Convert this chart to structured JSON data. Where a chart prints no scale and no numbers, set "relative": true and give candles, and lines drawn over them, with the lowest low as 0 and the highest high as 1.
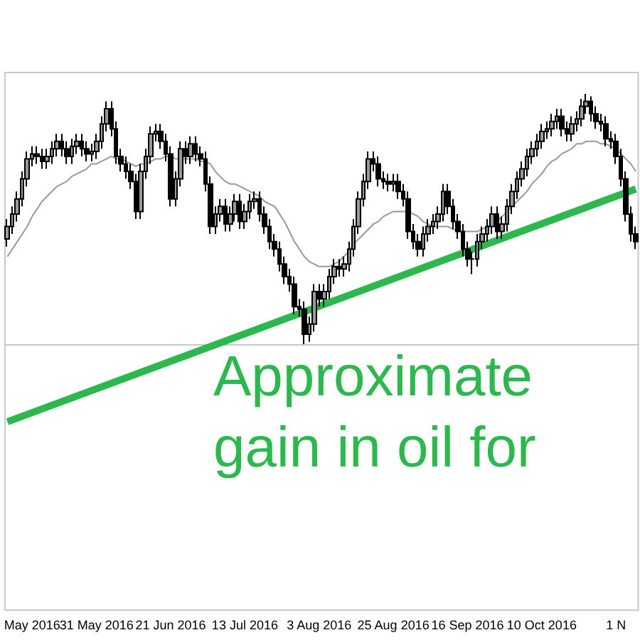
{
  "chart_data": {
    "type": "candlestick",
    "relative": true,
    "categories": [
      null,
      null,
      null,
      null,
      null,
      "May 2016",
      null,
      null,
      null,
      null,
      null,
      null,
      null,
      null,
      null,
      null,
      null,
      null,
      "31 May 2016",
      null,
      null,
      null,
      null,
      null,
      null,
      null,
      null,
      null,
      null,
      null,
      null,
      null,
      null,
      "21 Jun 2016",
      null,
      null,
      null,
      null,
      null,
      null,
      null,
      null,
      null,
      null,
      null,
      null,
      null,
      null,
      "13 Jul 2016",
      null,
      null,
      null,
      null,
      null,
      null,
      null,
      null,
      null,
      null,
      null,
      null,
      null,
      null,
      "3 Aug 2016",
      null,
      null,
      null,
      null,
      null,
      null,
      null,
      null,
      null,
      null,
      null,
      null,
      null,
      null,
      "25 Aug 2016",
      null,
      null,
      null,
      null,
      null,
      null,
      null,
      null,
      null,
      null,
      null,
      null,
      null,
      null,
      "16 Sep 2016",
      null,
      null,
      null,
      null,
      null,
      null,
      null,
      null,
      null,
      null,
      null,
      null,
      null,
      null,
      "10 Oct 2016",
      null,
      null,
      null,
      null,
      null,
      null,
      null,
      null,
      null,
      null,
      null,
      null,
      null,
      null,
      "1 N",
      null,
      null,
      null,
      null
    ],
    "series": [
      {
        "color": "#000000",
        "ohlc": [
          [
            0.42,
            0.5,
            0.39,
            0.47
          ],
          [
            0.47,
            0.55,
            0.44,
            0.52
          ],
          [
            0.52,
            0.61,
            0.49,
            0.58
          ],
          [
            0.58,
            0.69,
            0.55,
            0.66
          ],
          [
            0.66,
            0.77,
            0.63,
            0.74
          ],
          [
            0.74,
            0.79,
            0.71,
            0.76
          ],
          [
            0.76,
            0.79,
            0.72,
            0.75
          ],
          [
            0.75,
            0.78,
            0.7,
            0.73
          ],
          [
            0.73,
            0.78,
            0.7,
            0.75
          ],
          [
            0.75,
            0.81,
            0.72,
            0.78
          ],
          [
            0.78,
            0.84,
            0.75,
            0.81
          ],
          [
            0.81,
            0.84,
            0.75,
            0.78
          ],
          [
            0.78,
            0.81,
            0.72,
            0.75
          ],
          [
            0.75,
            0.82,
            0.72,
            0.79
          ],
          [
            0.79,
            0.84,
            0.76,
            0.81
          ],
          [
            0.81,
            0.84,
            0.75,
            0.78
          ],
          [
            0.78,
            0.81,
            0.73,
            0.76
          ],
          [
            0.76,
            0.8,
            0.73,
            0.77
          ],
          [
            0.77,
            0.84,
            0.74,
            0.81
          ],
          [
            0.81,
            0.91,
            0.78,
            0.88
          ],
          [
            0.88,
            0.97,
            0.85,
            0.94
          ],
          [
            0.94,
            0.97,
            0.83,
            0.86
          ],
          [
            0.86,
            0.89,
            0.72,
            0.75
          ],
          [
            0.75,
            0.78,
            0.69,
            0.72
          ],
          [
            0.72,
            0.75,
            0.66,
            0.69
          ],
          [
            0.69,
            0.72,
            0.62,
            0.65
          ],
          [
            0.65,
            0.68,
            0.5,
            0.53
          ],
          [
            0.53,
            0.72,
            0.5,
            0.69
          ],
          [
            0.69,
            0.78,
            0.66,
            0.75
          ],
          [
            0.75,
            0.87,
            0.72,
            0.84
          ],
          [
            0.84,
            0.88,
            0.81,
            0.85
          ],
          [
            0.85,
            0.88,
            0.78,
            0.81
          ],
          [
            0.81,
            0.84,
            0.73,
            0.76
          ],
          [
            0.76,
            0.79,
            0.55,
            0.58
          ],
          [
            0.58,
            0.69,
            0.55,
            0.66
          ],
          [
            0.66,
            0.81,
            0.63,
            0.78
          ],
          [
            0.78,
            0.81,
            0.72,
            0.75
          ],
          [
            0.75,
            0.83,
            0.72,
            0.8
          ],
          [
            0.8,
            0.83,
            0.73,
            0.76
          ],
          [
            0.76,
            0.79,
            0.71,
            0.74
          ],
          [
            0.74,
            0.77,
            0.61,
            0.64
          ],
          [
            0.64,
            0.67,
            0.44,
            0.47
          ],
          [
            0.47,
            0.55,
            0.44,
            0.52
          ],
          [
            0.52,
            0.58,
            0.49,
            0.55
          ],
          [
            0.55,
            0.58,
            0.45,
            0.48
          ],
          [
            0.48,
            0.55,
            0.45,
            0.52
          ],
          [
            0.52,
            0.6,
            0.49,
            0.57
          ],
          [
            0.57,
            0.6,
            0.46,
            0.49
          ],
          [
            0.49,
            0.56,
            0.46,
            0.53
          ],
          [
            0.53,
            0.6,
            0.5,
            0.57
          ],
          [
            0.57,
            0.61,
            0.54,
            0.58
          ],
          [
            0.58,
            0.61,
            0.49,
            0.52
          ],
          [
            0.52,
            0.55,
            0.44,
            0.47
          ],
          [
            0.47,
            0.5,
            0.38,
            0.41
          ],
          [
            0.41,
            0.44,
            0.35,
            0.38
          ],
          [
            0.38,
            0.41,
            0.29,
            0.32
          ],
          [
            0.32,
            0.35,
            0.24,
            0.27
          ],
          [
            0.27,
            0.3,
            0.21,
            0.24
          ],
          [
            0.24,
            0.27,
            0.12,
            0.15
          ],
          [
            0.15,
            0.18,
            0.11,
            0.14
          ],
          [
            0.14,
            0.17,
            0,
            0.04
          ],
          [
            0.04,
            0.11,
            0.01,
            0.08
          ],
          [
            0.08,
            0.24,
            0.05,
            0.21
          ],
          [
            0.21,
            0.24,
            0.15,
            0.18
          ],
          [
            0.18,
            0.24,
            0.15,
            0.21
          ],
          [
            0.21,
            0.3,
            0.18,
            0.27
          ],
          [
            0.27,
            0.34,
            0.24,
            0.31
          ],
          [
            0.31,
            0.34,
            0.27,
            0.3
          ],
          [
            0.3,
            0.35,
            0.27,
            0.32
          ],
          [
            0.32,
            0.41,
            0.29,
            0.38
          ],
          [
            0.38,
            0.5,
            0.35,
            0.47
          ],
          [
            0.47,
            0.61,
            0.44,
            0.58
          ],
          [
            0.58,
            0.68,
            0.55,
            0.65
          ],
          [
            0.65,
            0.77,
            0.62,
            0.74
          ],
          [
            0.74,
            0.77,
            0.69,
            0.72
          ],
          [
            0.72,
            0.75,
            0.63,
            0.66
          ],
          [
            0.66,
            0.69,
            0.62,
            0.65
          ],
          [
            0.65,
            0.68,
            0.61,
            0.64
          ],
          [
            0.64,
            0.68,
            0.61,
            0.65
          ],
          [
            0.65,
            0.68,
            0.58,
            0.61
          ],
          [
            0.61,
            0.64,
            0.55,
            0.58
          ],
          [
            0.58,
            0.61,
            0.42,
            0.45
          ],
          [
            0.45,
            0.48,
            0.38,
            0.41
          ],
          [
            0.41,
            0.44,
            0.35,
            0.38
          ],
          [
            0.38,
            0.47,
            0.35,
            0.44
          ],
          [
            0.44,
            0.5,
            0.41,
            0.47
          ],
          [
            0.47,
            0.52,
            0.44,
            0.49
          ],
          [
            0.49,
            0.55,
            0.46,
            0.52
          ],
          [
            0.52,
            0.64,
            0.49,
            0.61
          ],
          [
            0.61,
            0.64,
            0.52,
            0.55
          ],
          [
            0.55,
            0.58,
            0.46,
            0.49
          ],
          [
            0.49,
            0.52,
            0.42,
            0.45
          ],
          [
            0.45,
            0.48,
            0.35,
            0.38
          ],
          [
            0.38,
            0.41,
            0.31,
            0.34
          ],
          [
            0.34,
            0.37,
            0.28,
            0.34
          ],
          [
            0.34,
            0.44,
            0.31,
            0.41
          ],
          [
            0.41,
            0.47,
            0.38,
            0.44
          ],
          [
            0.44,
            0.5,
            0.41,
            0.47
          ],
          [
            0.47,
            0.55,
            0.44,
            0.52
          ],
          [
            0.52,
            0.55,
            0.42,
            0.45
          ],
          [
            0.45,
            0.51,
            0.42,
            0.48
          ],
          [
            0.48,
            0.58,
            0.45,
            0.55
          ],
          [
            0.55,
            0.64,
            0.52,
            0.61
          ],
          [
            0.61,
            0.69,
            0.58,
            0.66
          ],
          [
            0.66,
            0.73,
            0.63,
            0.7
          ],
          [
            0.7,
            0.78,
            0.67,
            0.75
          ],
          [
            0.75,
            0.81,
            0.72,
            0.78
          ],
          [
            0.78,
            0.84,
            0.75,
            0.81
          ],
          [
            0.81,
            0.88,
            0.78,
            0.85
          ],
          [
            0.85,
            0.89,
            0.82,
            0.86
          ],
          [
            0.86,
            0.92,
            0.83,
            0.89
          ],
          [
            0.89,
            0.94,
            0.86,
            0.91
          ],
          [
            0.91,
            0.94,
            0.83,
            0.86
          ],
          [
            0.86,
            0.89,
            0.81,
            0.84
          ],
          [
            0.84,
            0.91,
            0.81,
            0.88
          ],
          [
            0.88,
            0.93,
            0.85,
            0.9
          ],
          [
            0.9,
            0.98,
            0.87,
            0.95
          ],
          [
            0.95,
            1,
            0.92,
            0.97
          ],
          [
            0.97,
            0.99,
            0.89,
            0.92
          ],
          [
            0.92,
            0.95,
            0.86,
            0.89
          ],
          [
            0.89,
            0.92,
            0.85,
            0.88
          ],
          [
            0.88,
            0.91,
            0.79,
            0.82
          ],
          [
            0.82,
            0.85,
            0.78,
            0.81
          ],
          [
            0.81,
            0.84,
            0.72,
            0.75
          ],
          [
            0.75,
            0.78,
            0.63,
            0.66
          ],
          [
            0.66,
            0.69,
            0.49,
            0.52
          ],
          [
            0.52,
            0.55,
            0.41,
            0.44
          ],
          [
            0.44,
            0.47,
            0.38,
            0.41
          ]
        ]
      },
      {
        "type": "line",
        "color": "#999999",
        "values": [
          0.35,
          0.38,
          0.41,
          0.44,
          0.47,
          0.51,
          0.54,
          0.57,
          0.59,
          0.61,
          0.63,
          0.64,
          0.65,
          0.67,
          0.68,
          0.69,
          0.7,
          0.72,
          0.72,
          0.73,
          0.74,
          0.75,
          0.74,
          0.74,
          0.73,
          0.72,
          0.71,
          0.72,
          0.72,
          0.73,
          0.74,
          0.74,
          0.75,
          0.75,
          0.74,
          0.74,
          0.74,
          0.74,
          0.74,
          0.73,
          0.73,
          0.72,
          0.69,
          0.67,
          0.65,
          0.64,
          0.64,
          0.63,
          0.62,
          0.61,
          0.6,
          0.59,
          0.57,
          0.56,
          0.55,
          0.52,
          0.49,
          0.45,
          0.41,
          0.38,
          0.35,
          0.33,
          0.32,
          0.31,
          0.31,
          0.31,
          0.32,
          0.33,
          0.35,
          0.37,
          0.4,
          0.42,
          0.44,
          0.46,
          0.48,
          0.49,
          0.51,
          0.52,
          0.53,
          0.53,
          0.53,
          0.53,
          0.52,
          0.51,
          0.49,
          0.48,
          0.47,
          0.47,
          0.47,
          0.47,
          0.46,
          0.45,
          0.45,
          0.45,
          0.45,
          0.45,
          0.46,
          0.47,
          0.48,
          0.49,
          0.51,
          0.53,
          0.55,
          0.57,
          0.59,
          0.61,
          0.64,
          0.66,
          0.68,
          0.71,
          0.73,
          0.74,
          0.76,
          0.77,
          0.78,
          0.8,
          0.8,
          0.81,
          0.81,
          0.81,
          0.8,
          0.8,
          0.79,
          0.78,
          0.76,
          0.74,
          0.72,
          0.69
        ]
      },
      {
        "type": "line",
        "color": "#2db84d",
        "values": [
          -0.31,
          null,
          null,
          null,
          null,
          null,
          null,
          null,
          null,
          null,
          null,
          null,
          null,
          null,
          null,
          null,
          null,
          null,
          null,
          null,
          null,
          null,
          null,
          null,
          null,
          null,
          null,
          null,
          null,
          null,
          null,
          null,
          null,
          null,
          null,
          null,
          null,
          null,
          null,
          null,
          null,
          null,
          null,
          null,
          null,
          null,
          null,
          null,
          null,
          null,
          null,
          null,
          null,
          null,
          null,
          null,
          null,
          null,
          null,
          null,
          null,
          null,
          null,
          null,
          null,
          null,
          null,
          null,
          null,
          null,
          null,
          null,
          null,
          null,
          null,
          null,
          null,
          null,
          null,
          null,
          null,
          null,
          null,
          null,
          null,
          null,
          null,
          null,
          null,
          null,
          null,
          null,
          null,
          null,
          null,
          null,
          null,
          null,
          null,
          null,
          null,
          null,
          null,
          null,
          null,
          null,
          null,
          null,
          null,
          null,
          null,
          null,
          null,
          null,
          null,
          null,
          null,
          null,
          null,
          null,
          null,
          null,
          null,
          null,
          null,
          null,
          null,
          0.62
        ]
      }
    ],
    "annotations": [
      "Approximate\ngain in oil for"
    ]
  }
}
